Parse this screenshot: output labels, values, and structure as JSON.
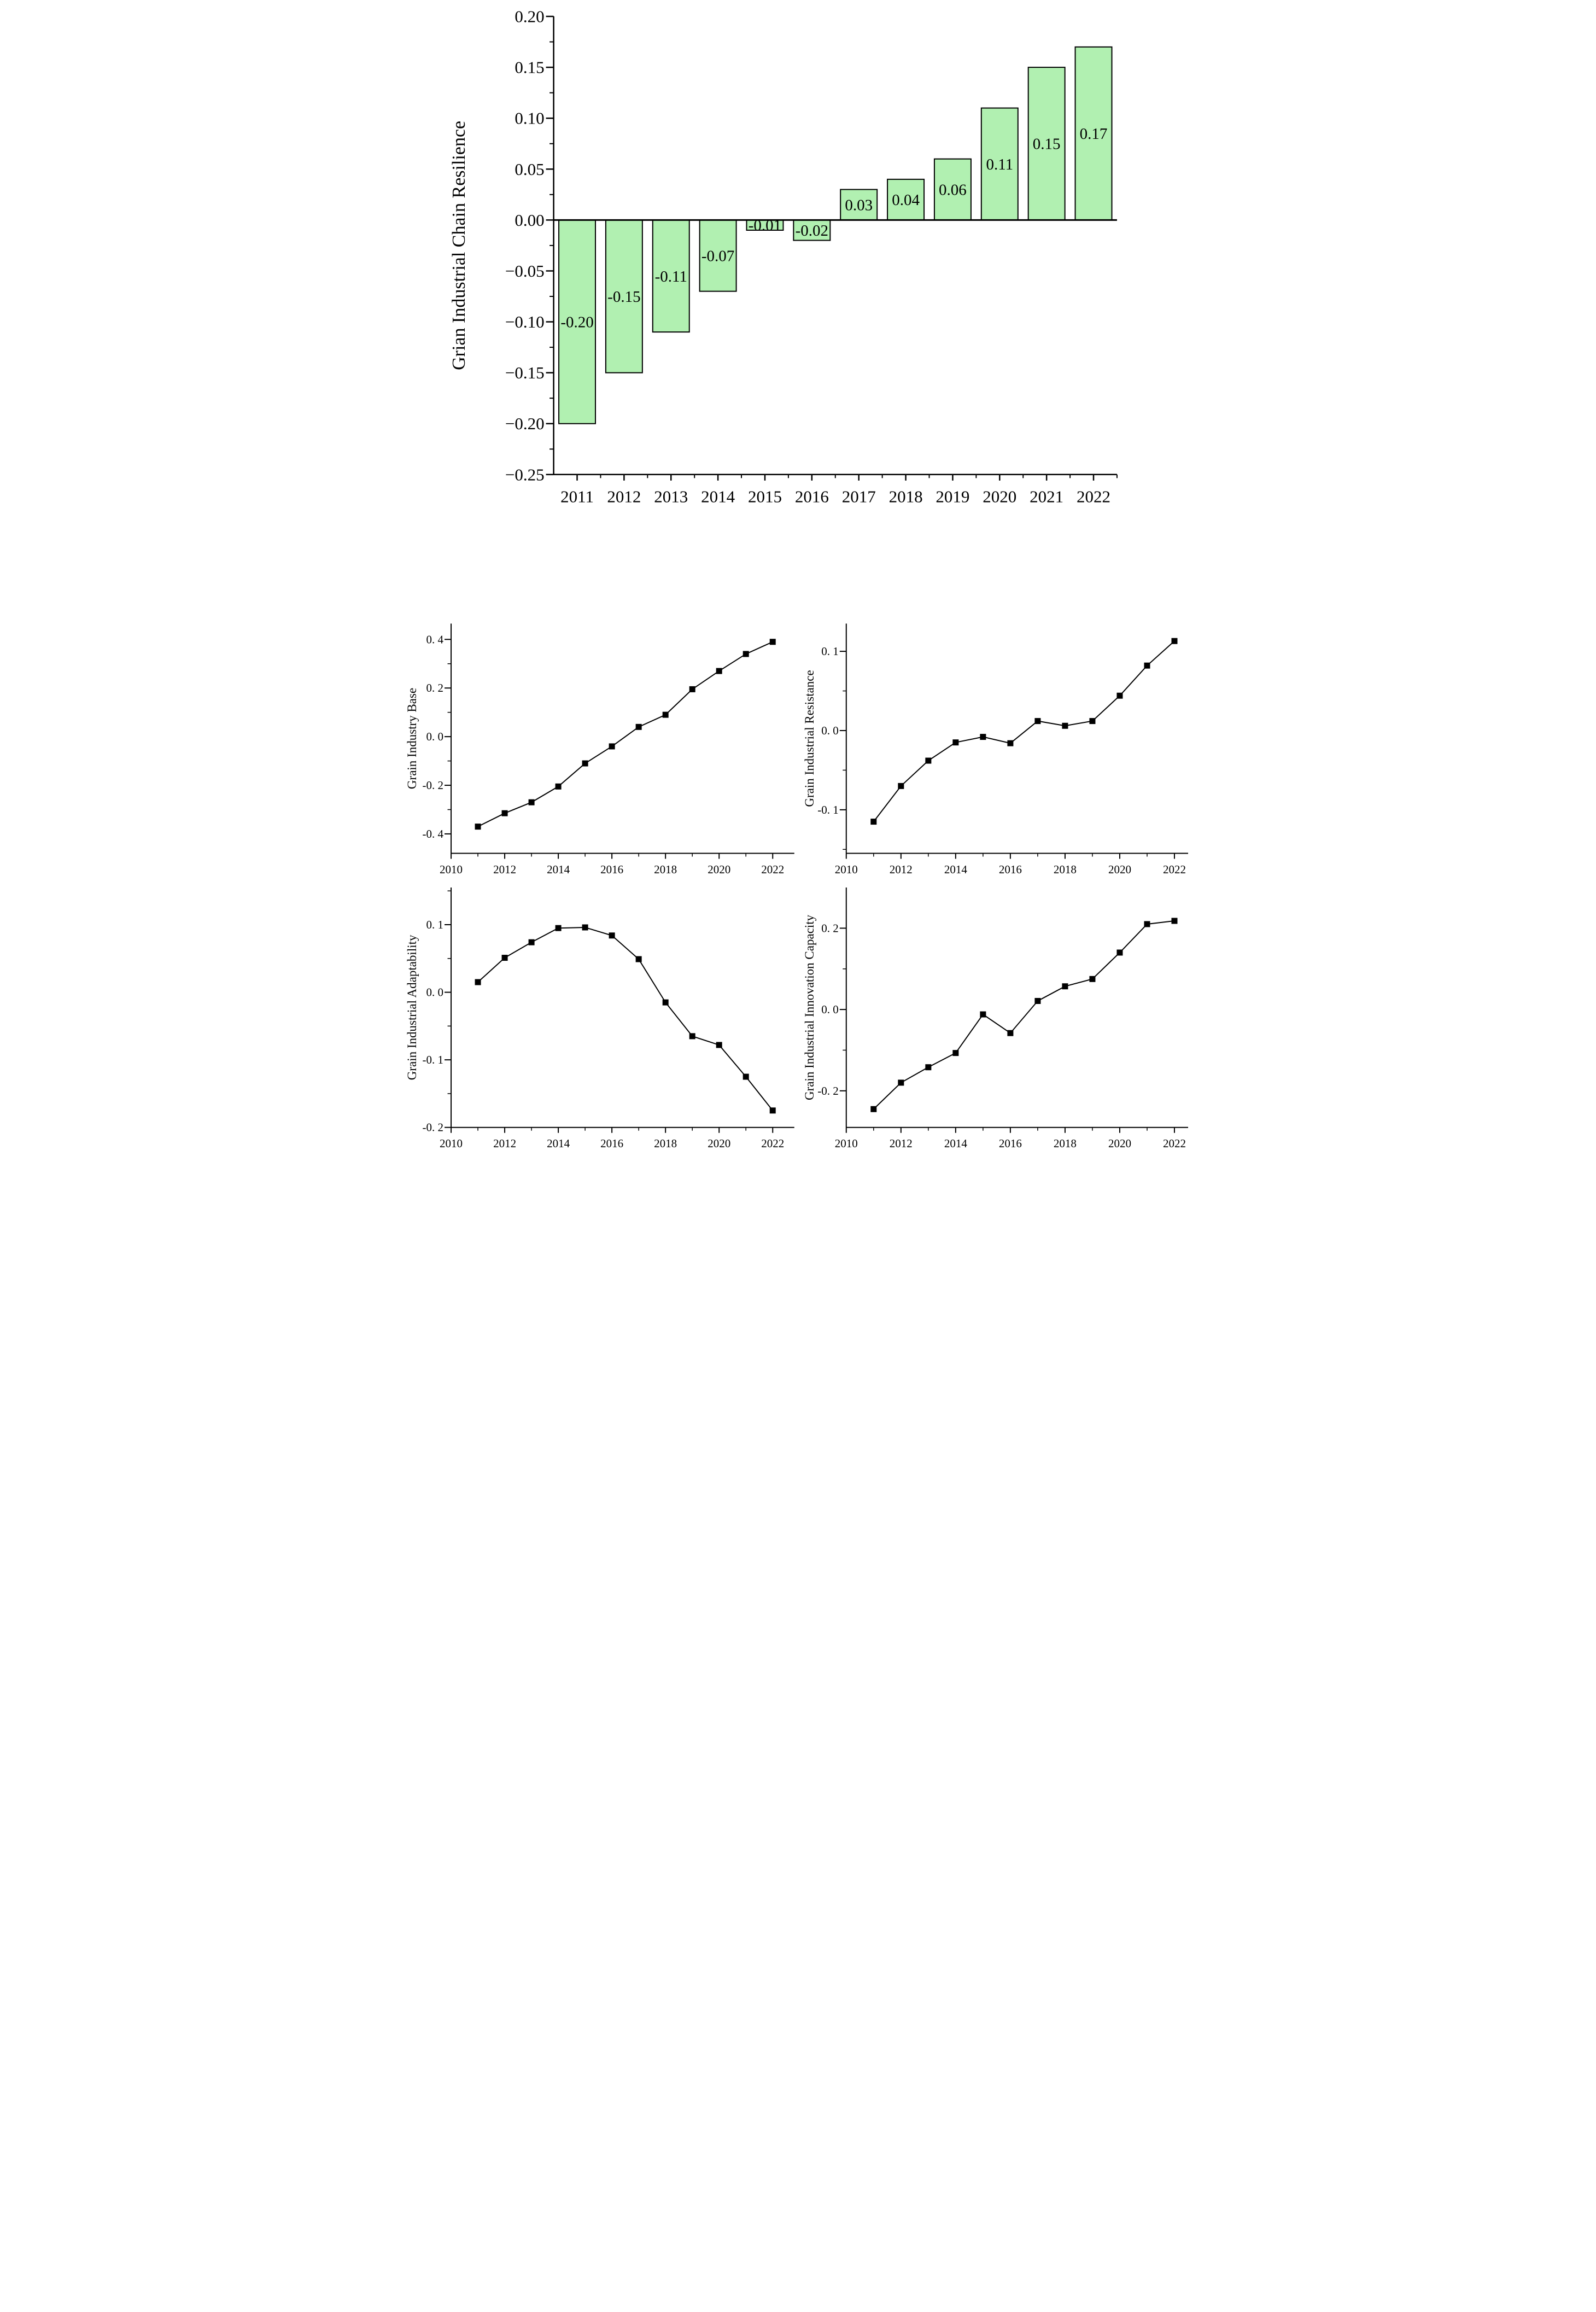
{
  "figure": {
    "background": "#ffffff",
    "text_color": "#000000",
    "line_color": "#000000"
  },
  "chart_data": [
    {
      "id": "resilience-bar",
      "type": "bar",
      "title": "",
      "xlabel": "",
      "ylabel": "Grian Industrial Chain Resilience",
      "categories": [
        "2011",
        "2012",
        "2013",
        "2014",
        "2015",
        "2016",
        "2017",
        "2018",
        "2019",
        "2020",
        "2021",
        "2022"
      ],
      "values": [
        -0.2,
        -0.15,
        -0.11,
        -0.07,
        -0.01,
        -0.02,
        0.03,
        0.04,
        0.06,
        0.11,
        0.15,
        0.17
      ],
      "bar_labels": [
        "-0.20",
        "-0.15",
        "-0.11",
        "-0.07",
        "-0.01",
        "-0.02",
        "0.03",
        "0.04",
        "0.06",
        "0.11",
        "0.15",
        "0.17"
      ],
      "bar_color": "#b1f0b1",
      "bar_edge_color": "#000000",
      "ylim": [
        -0.25,
        0.2
      ],
      "yticks": [
        0.2,
        0.15,
        0.1,
        0.05,
        0.0,
        -0.05,
        -0.1,
        -0.15,
        -0.2,
        -0.25
      ],
      "ytick_labels": [
        "0.20",
        "0.15",
        "0.10",
        "0.05",
        "0.00",
        "−0.05",
        "−0.10",
        "−0.15",
        "−0.20",
        "−0.25"
      ],
      "grid": false,
      "legend": "none"
    },
    {
      "id": "industry-base-line",
      "type": "line",
      "ylabel": "Grain Industry Base",
      "x": [
        2011,
        2012,
        2013,
        2014,
        2015,
        2016,
        2017,
        2018,
        2019,
        2020,
        2021,
        2022
      ],
      "y": [
        -0.37,
        -0.315,
        -0.27,
        -0.205,
        -0.11,
        -0.04,
        0.04,
        0.09,
        0.195,
        0.27,
        0.34,
        0.39
      ],
      "ylim": [
        -0.48,
        0.465
      ],
      "yticks": [
        0.4,
        0.2,
        0.0,
        -0.2,
        -0.4
      ],
      "ytick_labels": [
        "0. 4",
        "0. 2",
        "0. 0",
        "-0. 2",
        "-0. 4"
      ],
      "xticks": [
        2010,
        2012,
        2014,
        2016,
        2018,
        2020,
        2022
      ],
      "xtick_labels": [
        "2010",
        "2012",
        "2014",
        "2016",
        "2018",
        "2020",
        "2022"
      ],
      "marker": "square",
      "grid": false,
      "legend": "none"
    },
    {
      "id": "industrial-resistance-line",
      "type": "line",
      "ylabel": "Grain Industrial Resistance",
      "x": [
        2011,
        2012,
        2013,
        2014,
        2015,
        2016,
        2017,
        2018,
        2019,
        2020,
        2021,
        2022
      ],
      "y": [
        -0.115,
        -0.07,
        -0.038,
        -0.015,
        -0.008,
        -0.016,
        0.012,
        0.006,
        0.012,
        0.044,
        0.082,
        0.113
      ],
      "ylim": [
        -0.155,
        0.135
      ],
      "yticks": [
        0.1,
        0.0,
        -0.1
      ],
      "ytick_labels": [
        "0. 1",
        "0. 0",
        "-0. 1"
      ],
      "xticks": [
        2010,
        2012,
        2014,
        2016,
        2018,
        2020,
        2022
      ],
      "xtick_labels": [
        "2010",
        "2012",
        "2014",
        "2016",
        "2018",
        "2020",
        "2022"
      ],
      "marker": "square",
      "grid": false,
      "legend": "none"
    },
    {
      "id": "industrial-adaptability-line",
      "type": "line",
      "ylabel": "Grain Industrial Adaptability",
      "x": [
        2011,
        2012,
        2013,
        2014,
        2015,
        2016,
        2017,
        2018,
        2019,
        2020,
        2021,
        2022
      ],
      "y": [
        0.015,
        0.051,
        0.074,
        0.095,
        0.096,
        0.084,
        0.049,
        -0.015,
        -0.065,
        -0.078,
        -0.125,
        -0.175
      ],
      "ylim": [
        -0.2,
        0.155
      ],
      "yticks": [
        0.1,
        0.0,
        -0.1,
        -0.2
      ],
      "ytick_labels": [
        "0. 1",
        "0. 0",
        "-0. 1",
        "-0. 2"
      ],
      "xticks": [
        2010,
        2012,
        2014,
        2016,
        2018,
        2020,
        2022
      ],
      "xtick_labels": [
        "2010",
        "2012",
        "2014",
        "2016",
        "2018",
        "2020",
        "2022"
      ],
      "marker": "square",
      "grid": false,
      "legend": "none"
    },
    {
      "id": "innovation-capacity-line",
      "type": "line",
      "ylabel": "Grain Industrial Innovation Capacity",
      "x": [
        2011,
        2012,
        2013,
        2014,
        2015,
        2016,
        2017,
        2018,
        2019,
        2020,
        2021,
        2022
      ],
      "y": [
        -0.245,
        -0.18,
        -0.142,
        -0.107,
        -0.012,
        -0.058,
        0.021,
        0.057,
        0.075,
        0.14,
        0.21,
        0.218
      ],
      "ylim": [
        -0.29,
        0.3
      ],
      "yticks": [
        0.2,
        0.0,
        -0.2
      ],
      "ytick_labels": [
        "0. 2",
        "0. 0",
        "-0. 2"
      ],
      "xticks": [
        2010,
        2012,
        2014,
        2016,
        2018,
        2020,
        2022
      ],
      "xtick_labels": [
        "2010",
        "2012",
        "2014",
        "2016",
        "2018",
        "2020",
        "2022"
      ],
      "marker": "square",
      "grid": false,
      "legend": "none"
    }
  ]
}
